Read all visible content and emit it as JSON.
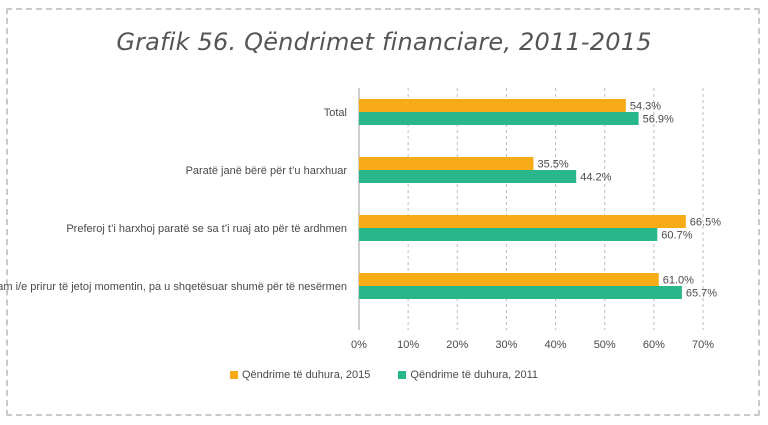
{
  "chart_data": {
    "type": "bar",
    "orientation": "horizontal",
    "title": "Grafik 56. Qëndrimet financiare, 2011-2015",
    "categories": [
      "Total",
      "Paratë janë bërë për t’u harxhuar",
      "Preferoj t’i harxhoj paratë se sa t’i ruaj ato për të ardhmen",
      "Jam i/e prirur të jetoj momentin, pa u shqetësuar shumë për të nesërmen"
    ],
    "series": [
      {
        "name": "Qëndrime të duhura, 2015",
        "color": "#f7ab17",
        "values": [
          54.3,
          35.5,
          66.5,
          61.0
        ],
        "labels": [
          "54.3%",
          "35.5%",
          "66.5%",
          "61.0%"
        ]
      },
      {
        "name": "Qëndrime të duhura, 2011",
        "color": "#29b68a",
        "values": [
          56.9,
          44.2,
          60.7,
          65.7
        ],
        "labels": [
          "56.9%",
          "44.2%",
          "60.7%",
          "65.7%"
        ]
      }
    ],
    "xlim": [
      0,
      70
    ],
    "ticks": [
      0,
      10,
      20,
      30,
      40,
      50,
      60,
      70
    ],
    "tick_labels": [
      "0%",
      "10%",
      "20%",
      "30%",
      "40%",
      "50%",
      "60%",
      "70%"
    ],
    "gridlines": "vertical-dashed",
    "legend_position": "bottom"
  }
}
